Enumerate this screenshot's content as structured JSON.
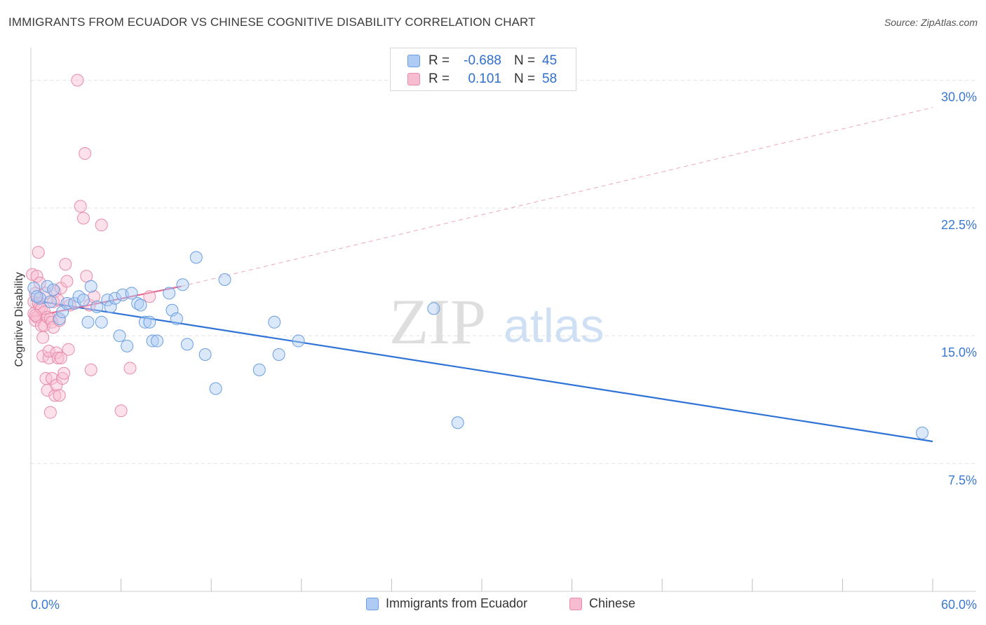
{
  "title": "IMMIGRANTS FROM ECUADOR VS CHINESE COGNITIVE DISABILITY CORRELATION CHART",
  "source": "Source: ZipAtlas.com",
  "watermark": {
    "zip": "ZIP",
    "atlas": "atlas"
  },
  "legend": {
    "r_label": "R =",
    "n_label": "N =",
    "series": [
      {
        "name": "Immigrants from Ecuador",
        "r": "-0.688",
        "n": "45",
        "fill": "#aecbf3",
        "stroke": "#6a9ee0"
      },
      {
        "name": "Chinese",
        "r": "0.101",
        "n": "58",
        "fill": "#f8bcd0",
        "stroke": "#e88aa8"
      }
    ]
  },
  "chart_data": {
    "type": "scatter",
    "title": "IMMIGRANTS FROM ECUADOR VS CHINESE COGNITIVE DISABILITY CORRELATION CHART",
    "xlabel": "",
    "ylabel": "Cognitive Disability",
    "xlim": [
      0,
      60
    ],
    "ylim": [
      0,
      31.5
    ],
    "x_tick_labels": [
      "0.0%",
      "60.0%"
    ],
    "y_ticks": [
      7.5,
      15.0,
      22.5,
      30.0
    ],
    "y_tick_labels": [
      "7.5%",
      "15.0%",
      "22.5%",
      "30.0%"
    ],
    "grid": true,
    "series": [
      {
        "name": "Immigrants from Ecuador",
        "color": "#6a9ee0",
        "points": [
          [
            0.2,
            17.8
          ],
          [
            0.6,
            17.2
          ],
          [
            1.1,
            17.9
          ],
          [
            1.3,
            17.0
          ],
          [
            1.5,
            17.7
          ],
          [
            1.9,
            16.0
          ],
          [
            2.1,
            16.4
          ],
          [
            2.4,
            16.9
          ],
          [
            2.9,
            16.9
          ],
          [
            3.2,
            17.3
          ],
          [
            3.5,
            17.1
          ],
          [
            3.8,
            15.8
          ],
          [
            4.0,
            17.9
          ],
          [
            4.4,
            16.7
          ],
          [
            4.7,
            15.8
          ],
          [
            5.1,
            17.1
          ],
          [
            5.3,
            16.7
          ],
          [
            5.6,
            17.2
          ],
          [
            5.9,
            15.0
          ],
          [
            6.1,
            17.4
          ],
          [
            6.4,
            14.4
          ],
          [
            6.7,
            17.5
          ],
          [
            7.1,
            16.9
          ],
          [
            7.3,
            16.8
          ],
          [
            7.6,
            15.8
          ],
          [
            7.9,
            15.8
          ],
          [
            8.1,
            14.7
          ],
          [
            8.4,
            14.7
          ],
          [
            9.2,
            17.5
          ],
          [
            9.4,
            16.5
          ],
          [
            9.7,
            16.0
          ],
          [
            10.1,
            18.0
          ],
          [
            10.4,
            14.5
          ],
          [
            11.0,
            19.6
          ],
          [
            11.6,
            13.9
          ],
          [
            12.3,
            11.9
          ],
          [
            12.9,
            18.3
          ],
          [
            15.2,
            13.0
          ],
          [
            16.2,
            15.8
          ],
          [
            16.5,
            13.9
          ],
          [
            17.8,
            14.7
          ],
          [
            26.8,
            16.6
          ],
          [
            28.4,
            9.9
          ],
          [
            59.3,
            9.3
          ],
          [
            0.4,
            17.3
          ]
        ]
      },
      {
        "name": "Chinese",
        "color": "#e88aa8",
        "points": [
          [
            0.1,
            18.6
          ],
          [
            0.2,
            17.0
          ],
          [
            0.2,
            16.3
          ],
          [
            0.3,
            15.9
          ],
          [
            0.3,
            17.5
          ],
          [
            0.4,
            16.1
          ],
          [
            0.4,
            18.5
          ],
          [
            0.5,
            19.9
          ],
          [
            0.5,
            16.9
          ],
          [
            0.6,
            16.7
          ],
          [
            0.6,
            18.1
          ],
          [
            0.7,
            15.6
          ],
          [
            0.7,
            16.6
          ],
          [
            0.8,
            14.9
          ],
          [
            0.8,
            13.8
          ],
          [
            0.9,
            15.6
          ],
          [
            0.9,
            16.4
          ],
          [
            1.0,
            17.5
          ],
          [
            1.0,
            12.5
          ],
          [
            1.1,
            16.1
          ],
          [
            1.1,
            11.8
          ],
          [
            1.2,
            13.7
          ],
          [
            1.2,
            14.1
          ],
          [
            1.3,
            10.5
          ],
          [
            1.3,
            16.0
          ],
          [
            1.4,
            15.8
          ],
          [
            1.4,
            12.5
          ],
          [
            1.5,
            17.0
          ],
          [
            1.5,
            15.5
          ],
          [
            1.6,
            17.6
          ],
          [
            1.6,
            11.5
          ],
          [
            1.7,
            14.0
          ],
          [
            1.7,
            12.1
          ],
          [
            1.8,
            13.7
          ],
          [
            1.8,
            17.1
          ],
          [
            1.9,
            15.9
          ],
          [
            1.9,
            11.5
          ],
          [
            2.0,
            17.8
          ],
          [
            2.0,
            13.7
          ],
          [
            2.1,
            12.5
          ],
          [
            2.2,
            12.8
          ],
          [
            2.3,
            19.2
          ],
          [
            2.4,
            18.2
          ],
          [
            2.5,
            14.2
          ],
          [
            3.1,
            30.0
          ],
          [
            3.3,
            22.6
          ],
          [
            3.5,
            21.9
          ],
          [
            3.6,
            25.7
          ],
          [
            3.7,
            18.5
          ],
          [
            3.9,
            16.8
          ],
          [
            4.0,
            13.0
          ],
          [
            4.2,
            17.3
          ],
          [
            4.7,
            21.5
          ],
          [
            6.0,
            10.6
          ],
          [
            6.6,
            13.1
          ],
          [
            7.9,
            17.3
          ],
          [
            0.3,
            16.2
          ],
          [
            2.6,
            16.8
          ]
        ]
      }
    ],
    "trend_lines": [
      {
        "series": "Immigrants from Ecuador",
        "x": [
          0,
          60
        ],
        "y": [
          17.1,
          8.8
        ],
        "style": "solid"
      },
      {
        "series": "Chinese",
        "x": [
          0,
          10
        ],
        "y": [
          16.1,
          17.9
        ],
        "style": "solid"
      },
      {
        "series": "Chinese",
        "x": [
          10,
          60
        ],
        "y": [
          17.9,
          28.4
        ],
        "style": "dashed"
      }
    ]
  }
}
